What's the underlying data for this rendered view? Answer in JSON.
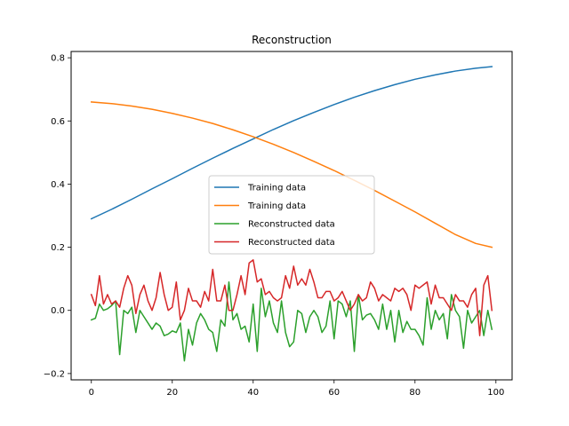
{
  "chart_data": {
    "type": "line",
    "title": "Reconstruction",
    "xlabel": "",
    "ylabel": "",
    "xlim": [
      -5,
      104
    ],
    "ylim": [
      -0.22,
      0.82
    ],
    "xticks": [
      0,
      20,
      40,
      60,
      80,
      100
    ],
    "yticks": [
      -0.2,
      0.0,
      0.2,
      0.4,
      0.6,
      0.8
    ],
    "ytick_labels": [
      "−0.2",
      "0.0",
      "0.2",
      "0.4",
      "0.6",
      "0.8"
    ],
    "grid": false,
    "legend_position": "center",
    "series": [
      {
        "name": "Training data",
        "color": "#1f77b4",
        "x": [
          0,
          5,
          10,
          15,
          20,
          25,
          30,
          35,
          40,
          45,
          50,
          55,
          60,
          65,
          70,
          75,
          80,
          85,
          90,
          95,
          99
        ],
        "y": [
          0.29,
          0.32,
          0.352,
          0.385,
          0.417,
          0.45,
          0.482,
          0.513,
          0.543,
          0.573,
          0.601,
          0.627,
          0.652,
          0.675,
          0.696,
          0.715,
          0.732,
          0.746,
          0.758,
          0.767,
          0.772
        ]
      },
      {
        "name": "Training data",
        "color": "#ff7f0e",
        "x": [
          0,
          5,
          10,
          15,
          20,
          25,
          30,
          35,
          40,
          45,
          50,
          55,
          60,
          65,
          70,
          75,
          80,
          85,
          90,
          95,
          99
        ],
        "y": [
          0.66,
          0.655,
          0.647,
          0.637,
          0.624,
          0.609,
          0.592,
          0.572,
          0.55,
          0.526,
          0.5,
          0.472,
          0.443,
          0.412,
          0.38,
          0.346,
          0.312,
          0.276,
          0.24,
          0.212,
          0.2
        ]
      },
      {
        "name": "Reconstructed data",
        "color": "#2ca02c",
        "x": [
          0,
          1,
          2,
          3,
          4,
          5,
          6,
          7,
          8,
          9,
          10,
          11,
          12,
          13,
          14,
          15,
          16,
          17,
          18,
          19,
          20,
          21,
          22,
          23,
          24,
          25,
          26,
          27,
          28,
          29,
          30,
          31,
          32,
          33,
          34,
          35,
          36,
          37,
          38,
          39,
          40,
          41,
          42,
          43,
          44,
          45,
          46,
          47,
          48,
          49,
          50,
          51,
          52,
          53,
          54,
          55,
          56,
          57,
          58,
          59,
          60,
          61,
          62,
          63,
          64,
          65,
          66,
          67,
          68,
          69,
          70,
          71,
          72,
          73,
          74,
          75,
          76,
          77,
          78,
          79,
          80,
          81,
          82,
          83,
          84,
          85,
          86,
          87,
          88,
          89,
          90,
          91,
          92,
          93,
          94,
          95,
          96,
          97,
          98,
          99
        ],
        "y": [
          -0.03,
          -0.025,
          0.02,
          0.0,
          0.005,
          0.015,
          0.03,
          -0.14,
          0.0,
          -0.01,
          0.01,
          -0.07,
          0.0,
          -0.02,
          -0.04,
          -0.06,
          -0.04,
          -0.05,
          -0.08,
          -0.075,
          -0.065,
          -0.07,
          -0.04,
          -0.16,
          -0.06,
          -0.11,
          -0.04,
          -0.01,
          -0.03,
          -0.06,
          -0.07,
          -0.13,
          -0.03,
          -0.05,
          0.09,
          -0.03,
          -0.01,
          -0.06,
          -0.05,
          -0.1,
          0.02,
          -0.13,
          0.07,
          -0.02,
          0.03,
          -0.04,
          -0.07,
          0.03,
          -0.07,
          -0.115,
          -0.1,
          0.0,
          -0.01,
          -0.07,
          -0.02,
          0.0,
          -0.02,
          -0.07,
          -0.05,
          0.03,
          -0.09,
          0.03,
          0.02,
          -0.02,
          0.03,
          -0.13,
          0.05,
          -0.03,
          -0.015,
          -0.01,
          -0.03,
          -0.06,
          0.02,
          -0.06,
          0.0,
          -0.1,
          0.0,
          -0.07,
          -0.035,
          -0.06,
          -0.06,
          -0.08,
          -0.11,
          0.04,
          -0.06,
          0.0,
          -0.03,
          -0.01,
          -0.09,
          0.05,
          0.0,
          -0.02,
          -0.12,
          0.0,
          -0.04,
          -0.02,
          0.0,
          -0.08,
          0.0,
          -0.06
        ]
      },
      {
        "name": "Reconstructed data",
        "color": "#d62728",
        "x": [
          0,
          1,
          2,
          3,
          4,
          5,
          6,
          7,
          8,
          9,
          10,
          11,
          12,
          13,
          14,
          15,
          16,
          17,
          18,
          19,
          20,
          21,
          22,
          23,
          24,
          25,
          26,
          27,
          28,
          29,
          30,
          31,
          32,
          33,
          34,
          35,
          36,
          37,
          38,
          39,
          40,
          41,
          42,
          43,
          44,
          45,
          46,
          47,
          48,
          49,
          50,
          51,
          52,
          53,
          54,
          55,
          56,
          57,
          58,
          59,
          60,
          61,
          62,
          63,
          64,
          65,
          66,
          67,
          68,
          69,
          70,
          71,
          72,
          73,
          74,
          75,
          76,
          77,
          78,
          79,
          80,
          81,
          82,
          83,
          84,
          85,
          86,
          87,
          88,
          89,
          90,
          91,
          92,
          93,
          94,
          95,
          96,
          97,
          98,
          99
        ],
        "y": [
          0.05,
          0.015,
          0.11,
          0.02,
          0.05,
          0.02,
          0.03,
          0.01,
          0.07,
          0.11,
          0.08,
          -0.01,
          0.05,
          0.08,
          0.03,
          0.0,
          0.04,
          0.12,
          0.05,
          0.0,
          0.01,
          0.09,
          -0.03,
          0.0,
          0.07,
          0.03,
          0.03,
          0.01,
          0.06,
          0.03,
          0.13,
          0.03,
          0.03,
          0.08,
          0.0,
          0.0,
          0.05,
          0.11,
          0.05,
          0.15,
          0.16,
          0.09,
          0.1,
          0.05,
          0.06,
          0.04,
          0.03,
          0.04,
          0.11,
          0.07,
          0.14,
          0.08,
          0.1,
          0.08,
          0.13,
          0.09,
          0.04,
          0.04,
          0.06,
          0.06,
          0.03,
          0.04,
          0.06,
          0.03,
          0.0,
          0.02,
          0.05,
          0.03,
          0.04,
          0.09,
          0.07,
          0.03,
          0.05,
          0.04,
          0.03,
          0.07,
          0.06,
          0.07,
          0.05,
          0.0,
          0.08,
          0.07,
          0.08,
          0.09,
          0.02,
          0.08,
          0.04,
          0.04,
          0.02,
          0.0,
          0.05,
          0.03,
          0.03,
          0.01,
          0.05,
          0.07,
          -0.08,
          0.08,
          0.11,
          0.0
        ]
      }
    ]
  }
}
